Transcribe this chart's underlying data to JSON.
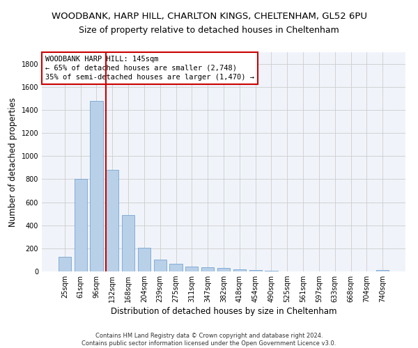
{
  "title1": "WOODBANK, HARP HILL, CHARLTON KINGS, CHELTENHAM, GL52 6PU",
  "title2": "Size of property relative to detached houses in Cheltenham",
  "xlabel": "Distribution of detached houses by size in Cheltenham",
  "ylabel": "Number of detached properties",
  "footnote": "Contains HM Land Registry data © Crown copyright and database right 2024.\nContains public sector information licensed under the Open Government Licence v3.0.",
  "categories": [
    "25sqm",
    "61sqm",
    "96sqm",
    "132sqm",
    "168sqm",
    "204sqm",
    "239sqm",
    "275sqm",
    "311sqm",
    "347sqm",
    "382sqm",
    "418sqm",
    "454sqm",
    "490sqm",
    "525sqm",
    "561sqm",
    "597sqm",
    "633sqm",
    "668sqm",
    "704sqm",
    "740sqm"
  ],
  "values": [
    125,
    800,
    1480,
    880,
    490,
    205,
    105,
    65,
    45,
    35,
    30,
    20,
    10,
    5,
    3,
    2,
    2,
    1,
    1,
    1,
    12
  ],
  "bar_color": "#b8d0e8",
  "bar_edge_color": "#6699cc",
  "grid_color": "#cccccc",
  "annotation_box_color": "#cc0000",
  "vline_color": "#cc0000",
  "vline_position": 3,
  "annotation_text": "WOODBANK HARP HILL: 145sqm\n← 65% of detached houses are smaller (2,748)\n35% of semi-detached houses are larger (1,470) →",
  "ylim": [
    0,
    1900
  ],
  "yticks": [
    0,
    200,
    400,
    600,
    800,
    1000,
    1200,
    1400,
    1600,
    1800
  ],
  "title1_fontsize": 9.5,
  "title2_fontsize": 9,
  "xlabel_fontsize": 8.5,
  "ylabel_fontsize": 8.5,
  "annotation_fontsize": 7.5,
  "tick_fontsize": 7
}
